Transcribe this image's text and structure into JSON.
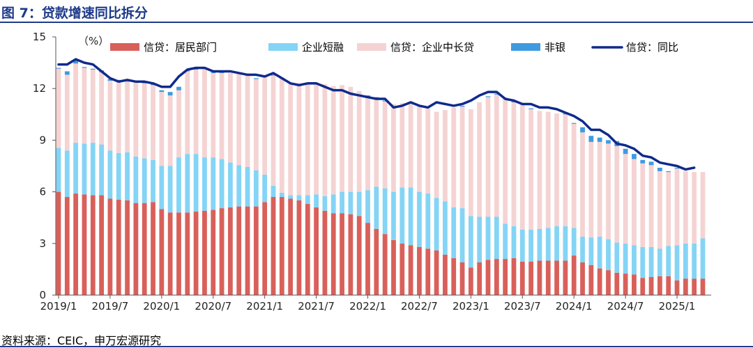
{
  "title": "图 7：贷款增速同比拆分",
  "source": "资料来源：CEIC，申万宏源研究",
  "chart_data": {
    "type": "bar",
    "stacked": true,
    "unit_label": "（%）",
    "ylim": [
      0,
      15
    ],
    "yticks": [
      0,
      3,
      6,
      9,
      12,
      15
    ],
    "xtick_labels": [
      "2019/1",
      "2019/7",
      "2020/1",
      "2020/7",
      "2021/1",
      "2021/7",
      "2022/1",
      "2022/7",
      "2023/1",
      "2023/7",
      "2024/1",
      "2024/7",
      "2025/1"
    ],
    "xtick_every": 6,
    "grid": false,
    "legend_position": "top",
    "categories": [
      "2019/1",
      "2019/2",
      "2019/3",
      "2019/4",
      "2019/5",
      "2019/6",
      "2019/7",
      "2019/8",
      "2019/9",
      "2019/10",
      "2019/11",
      "2019/12",
      "2020/1",
      "2020/2",
      "2020/3",
      "2020/4",
      "2020/5",
      "2020/6",
      "2020/7",
      "2020/8",
      "2020/9",
      "2020/10",
      "2020/11",
      "2020/12",
      "2021/1",
      "2021/2",
      "2021/3",
      "2021/4",
      "2021/5",
      "2021/6",
      "2021/7",
      "2021/8",
      "2021/9",
      "2021/10",
      "2021/11",
      "2021/12",
      "2022/1",
      "2022/2",
      "2022/3",
      "2022/4",
      "2022/5",
      "2022/6",
      "2022/7",
      "2022/8",
      "2022/9",
      "2022/10",
      "2022/11",
      "2022/12",
      "2023/1",
      "2023/2",
      "2023/3",
      "2023/4",
      "2023/5",
      "2023/6",
      "2023/7",
      "2023/8",
      "2023/9",
      "2023/10",
      "2023/11",
      "2023/12",
      "2024/1",
      "2024/2",
      "2024/3",
      "2024/4",
      "2024/5",
      "2024/6",
      "2024/7",
      "2024/8",
      "2024/9",
      "2024/10",
      "2024/11",
      "2024/12",
      "2025/1",
      "2025/2",
      "2025/3",
      "2025/4"
    ],
    "series": [
      {
        "name": "信贷：居民部门",
        "kind": "bar",
        "color": "#d9605a",
        "values": [
          6.0,
          5.7,
          5.9,
          5.85,
          5.8,
          5.8,
          5.6,
          5.55,
          5.5,
          5.35,
          5.35,
          5.4,
          5.0,
          4.8,
          4.8,
          4.8,
          4.85,
          4.9,
          4.95,
          5.05,
          5.1,
          5.15,
          5.15,
          5.15,
          5.4,
          5.7,
          5.7,
          5.6,
          5.5,
          5.3,
          5.1,
          4.9,
          4.75,
          4.75,
          4.7,
          4.6,
          4.2,
          3.85,
          3.55,
          3.2,
          3.0,
          2.9,
          2.8,
          2.7,
          2.6,
          2.35,
          2.15,
          1.9,
          1.6,
          1.9,
          2.05,
          2.1,
          2.1,
          2.15,
          1.95,
          1.95,
          2.0,
          2.0,
          2.0,
          2.0,
          2.3,
          1.9,
          1.75,
          1.55,
          1.45,
          1.3,
          1.25,
          1.2,
          1.0,
          1.05,
          1.1,
          1.1,
          0.85,
          0.95,
          0.95,
          0.95
        ]
      },
      {
        "name": "企业短融",
        "kind": "bar",
        "color": "#84d4f5",
        "values": [
          2.55,
          2.7,
          2.95,
          2.95,
          3.05,
          2.95,
          2.8,
          2.7,
          2.8,
          2.7,
          2.6,
          2.45,
          2.5,
          2.7,
          3.2,
          3.4,
          3.35,
          3.1,
          3.05,
          2.85,
          2.6,
          2.4,
          2.3,
          2.1,
          1.6,
          0.65,
          0.25,
          0.2,
          0.3,
          0.5,
          0.75,
          0.85,
          1.1,
          1.25,
          1.3,
          1.4,
          1.9,
          2.45,
          2.65,
          2.8,
          3.25,
          3.35,
          3.2,
          3.2,
          3.05,
          3.1,
          2.95,
          3.15,
          3.0,
          2.65,
          2.5,
          2.45,
          2.05,
          1.85,
          1.85,
          1.85,
          1.85,
          1.9,
          2.0,
          2.0,
          1.6,
          1.5,
          1.6,
          1.85,
          1.8,
          1.75,
          1.75,
          1.7,
          1.8,
          1.75,
          1.6,
          1.75,
          2.05,
          2.05,
          2.05,
          2.35
        ]
      },
      {
        "name": "信贷：企业中长贷",
        "kind": "bar",
        "color": "#f5d3d3",
        "values": [
          4.6,
          4.4,
          4.6,
          4.4,
          4.25,
          4.2,
          4.05,
          4.2,
          4.1,
          4.35,
          4.35,
          4.35,
          4.3,
          4.1,
          3.9,
          4.8,
          4.9,
          5.2,
          4.9,
          5.0,
          5.2,
          5.3,
          5.3,
          5.3,
          5.7,
          6.4,
          6.7,
          6.5,
          6.45,
          6.5,
          6.4,
          6.5,
          6.3,
          6.2,
          6.1,
          5.85,
          5.4,
          5.1,
          5.05,
          5.1,
          4.9,
          5.0,
          5.0,
          4.95,
          5.0,
          5.3,
          5.8,
          5.9,
          6.2,
          6.65,
          6.95,
          7.1,
          7.35,
          7.2,
          7.3,
          7.0,
          6.85,
          6.75,
          6.55,
          6.5,
          6.05,
          6.05,
          5.55,
          5.5,
          5.55,
          5.6,
          5.2,
          5.0,
          4.85,
          4.75,
          4.5,
          4.3,
          4.45,
          4.2,
          4.15,
          3.85
        ]
      },
      {
        "name": "非银",
        "kind": "bar",
        "color": "#3f9ae0",
        "values": [
          0.05,
          0.2,
          0.15,
          0.05,
          0.05,
          0.1,
          0.1,
          0.05,
          0.05,
          0.05,
          0.05,
          0.05,
          0.1,
          0.2,
          0.2,
          0.05,
          0.05,
          0.0,
          0.05,
          0.05,
          0.0,
          0.0,
          0.0,
          0.05,
          0.0,
          0.05,
          0.0,
          0.0,
          0.0,
          0.05,
          0.0,
          0.0,
          0.0,
          0.0,
          0.0,
          0.0,
          0.1,
          0.1,
          0.05,
          0.0,
          0.0,
          0.0,
          0.0,
          0.0,
          0.0,
          0.0,
          0.0,
          0.05,
          0.0,
          0.0,
          0.05,
          0.05,
          0.0,
          0.05,
          0.0,
          0.05,
          0.0,
          0.0,
          0.0,
          0.05,
          0.05,
          0.3,
          0.35,
          0.25,
          0.2,
          0.3,
          0.3,
          0.3,
          0.2,
          0.2,
          0.2,
          0.05,
          0.05,
          0.0,
          0.0,
          0.0
        ]
      },
      {
        "name": "信贷：同比",
        "kind": "line",
        "color": "#0f2a8c",
        "values": [
          13.4,
          13.4,
          13.7,
          13.5,
          13.4,
          13.0,
          12.6,
          12.4,
          12.5,
          12.4,
          12.4,
          12.3,
          12.1,
          12.1,
          12.7,
          13.1,
          13.2,
          13.2,
          13.0,
          13.0,
          13.0,
          12.9,
          12.8,
          12.8,
          12.7,
          12.9,
          12.6,
          12.3,
          12.2,
          12.3,
          12.3,
          12.1,
          11.9,
          11.9,
          11.7,
          11.6,
          11.5,
          11.4,
          11.4,
          10.9,
          11.0,
          11.2,
          11.0,
          10.9,
          11.2,
          11.1,
          11.0,
          11.1,
          11.3,
          11.6,
          11.8,
          11.8,
          11.4,
          11.3,
          11.1,
          11.1,
          10.9,
          10.9,
          10.8,
          10.6,
          10.4,
          10.1,
          9.6,
          9.6,
          9.3,
          8.8,
          8.7,
          8.5,
          8.1,
          8.0,
          7.7,
          7.6,
          7.5,
          7.3,
          7.4,
          null
        ]
      }
    ]
  }
}
